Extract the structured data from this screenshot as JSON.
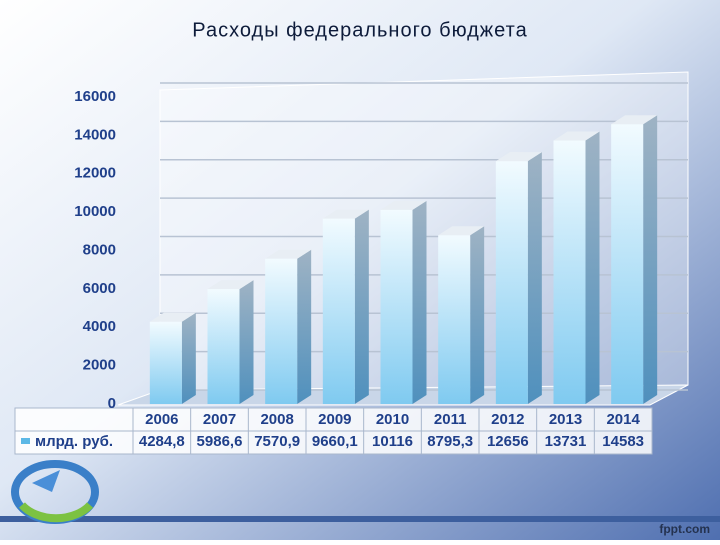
{
  "chart_data": {
    "type": "bar",
    "title": "Расходы федерального бюджета",
    "categories": [
      "2006",
      "2007",
      "2008",
      "2009",
      "2010",
      "2011",
      "2012",
      "2013",
      "2014"
    ],
    "series": [
      {
        "name": "млрд. руб.",
        "color": "#5cb8e6",
        "values": [
          4284.8,
          5986.6,
          7570.9,
          9660.1,
          10116,
          8795.3,
          12656,
          13731,
          14583
        ],
        "value_labels": [
          "4284,8",
          "5986,6",
          "7570,9",
          "9660,1",
          "10116",
          "8795,3",
          "12656",
          "13731",
          "14583"
        ]
      }
    ],
    "ylim": [
      0,
      16000
    ],
    "yticks": [
      0,
      2000,
      4000,
      6000,
      8000,
      10000,
      12000,
      14000,
      16000
    ],
    "grid": true,
    "footer": "fppt.com"
  }
}
